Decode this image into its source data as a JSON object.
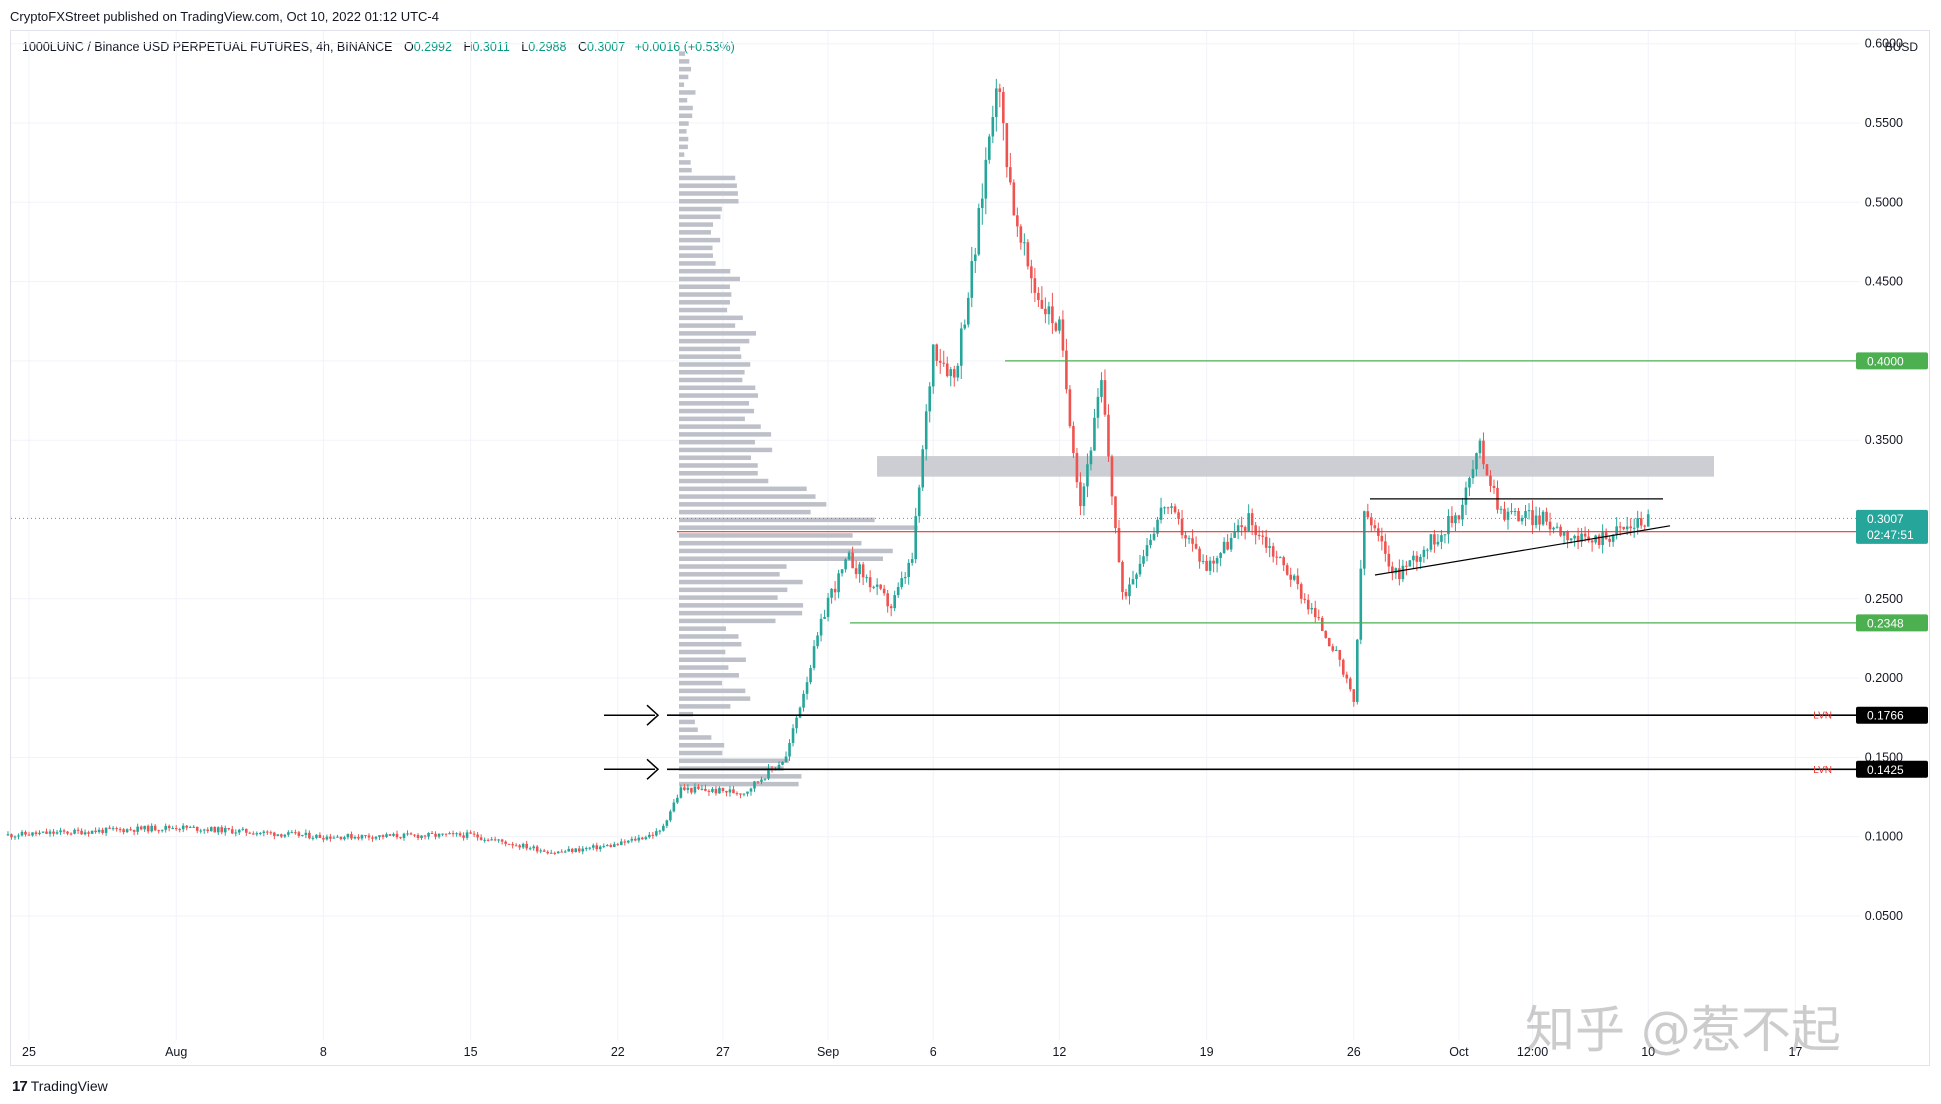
{
  "publisher": "CryptoFXStreet published on TradingView.com, Oct 10, 2022 01:12 UTC-4",
  "symbol": {
    "name": "1000LUNC / Binance USD PERPETUAL FUTURES, 4h, BINANCE",
    "open_label": "O",
    "open": "0.2992",
    "high_label": "H",
    "high": "0.3011",
    "low_label": "L",
    "low": "0.2988",
    "close_label": "C",
    "close": "0.3007",
    "change": "+0.0016 (+0.53%)"
  },
  "currency": "BUSD",
  "footer": {
    "logo_text": "TradingView",
    "logo_mark": "17"
  },
  "watermark": "知乎 @惹不起",
  "colors": {
    "up": "#26a69a",
    "down": "#ef5350",
    "profile": "#b2b5be",
    "zone": "#c8c9cf",
    "support_line": "#4caf50",
    "red_line": "#e53935",
    "badge_green": "#4caf50",
    "badge_teal": "#26a69a",
    "badge_red": "#f23645",
    "badge_black": "#000000"
  },
  "chart_data": {
    "type": "candlestick",
    "timeframe": "4h",
    "y_range": [
      0.03,
      0.64
    ],
    "y_ticks": [
      "0.6000",
      "0.5500",
      "0.5000",
      "0.4500",
      "0.4000",
      "0.3500",
      "0.2500",
      "0.2000",
      "0.1500",
      "0.1000",
      "0.0500"
    ],
    "x_ticks": [
      "25",
      "Aug",
      "8",
      "15",
      "22",
      "27",
      "Sep",
      "6",
      "12",
      "19",
      "26",
      "Oct",
      "12:00",
      "10",
      "17"
    ],
    "price_path": [
      {
        "date": "Jul 24",
        "price": 0.101
      },
      {
        "date": "Aug 1",
        "price": 0.106
      },
      {
        "date": "Aug 8",
        "price": 0.1
      },
      {
        "date": "Aug 15",
        "price": 0.101
      },
      {
        "date": "Aug 19",
        "price": 0.09
      },
      {
        "date": "Aug 22",
        "price": 0.095
      },
      {
        "date": "Aug 24",
        "price": 0.103
      },
      {
        "date": "Aug 25",
        "price": 0.13
      },
      {
        "date": "Aug 28",
        "price": 0.128
      },
      {
        "date": "Aug 30",
        "price": 0.15
      },
      {
        "date": "Sep 1",
        "price": 0.25
      },
      {
        "date": "Sep 2",
        "price": 0.275
      },
      {
        "date": "Sep 4",
        "price": 0.245
      },
      {
        "date": "Sep 5",
        "price": 0.275
      },
      {
        "date": "Sep 6",
        "price": 0.41
      },
      {
        "date": "Sep 7",
        "price": 0.39
      },
      {
        "date": "Sep 8",
        "price": 0.47
      },
      {
        "date": "Sep 9",
        "price": 0.58
      },
      {
        "date": "Sep 10",
        "price": 0.48
      },
      {
        "date": "Sep 11",
        "price": 0.44
      },
      {
        "date": "Sep 12",
        "price": 0.42
      },
      {
        "date": "Sep 13",
        "price": 0.31
      },
      {
        "date": "Sep 14",
        "price": 0.385
      },
      {
        "date": "Sep 15",
        "price": 0.25
      },
      {
        "date": "Sep 17",
        "price": 0.31
      },
      {
        "date": "Sep 19",
        "price": 0.27
      },
      {
        "date": "Sep 21",
        "price": 0.3
      },
      {
        "date": "Sep 23",
        "price": 0.265
      },
      {
        "date": "Sep 25",
        "price": 0.22
      },
      {
        "date": "Sep 26",
        "price": 0.185
      },
      {
        "date": "Sep 26 PM",
        "price": 0.305
      },
      {
        "date": "Sep 28",
        "price": 0.265
      },
      {
        "date": "Sep 30",
        "price": 0.29
      },
      {
        "date": "Oct 1",
        "price": 0.305
      },
      {
        "date": "Oct 2",
        "price": 0.345
      },
      {
        "date": "Oct 3",
        "price": 0.305
      },
      {
        "date": "Oct 5",
        "price": 0.3
      },
      {
        "date": "Oct 7",
        "price": 0.285
      },
      {
        "date": "Oct 9",
        "price": 0.295
      },
      {
        "date": "Oct 10",
        "price": 0.3007
      }
    ],
    "horizontal_levels": [
      {
        "price": 0.4,
        "label": "0.4000",
        "style": "green"
      },
      {
        "price": 0.2348,
        "label": "0.2348",
        "style": "green"
      },
      {
        "price": 0.2923,
        "label": "0.2923",
        "style": "red"
      },
      {
        "price": 0.1766,
        "label": "0.1766",
        "style": "black",
        "note": "LVN"
      },
      {
        "price": 0.1425,
        "label": "0.1425",
        "style": "black",
        "note": "LVN"
      }
    ],
    "zone": {
      "from": 0.327,
      "to": 0.34
    },
    "current_price": {
      "value": "0.3007",
      "countdown": "02:47:51"
    },
    "trendlines": [
      {
        "from": {
          "date": "Sep 26",
          "price": 0.313
        },
        "to": {
          "date": "Oct 10",
          "price": 0.313
        }
      },
      {
        "from": {
          "date": "Sep 26",
          "price": 0.265
        },
        "to": {
          "date": "Oct 10",
          "price": 0.296
        }
      }
    ]
  }
}
